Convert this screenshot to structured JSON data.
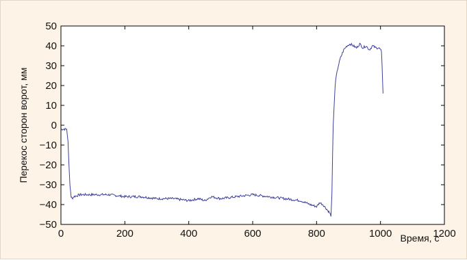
{
  "chart_data": {
    "type": "line",
    "xlabel": "Время, с",
    "ylabel": "Перекос сторон ворот, мм",
    "xlim": [
      0,
      1200
    ],
    "ylim": [
      -50,
      50
    ],
    "x_ticks": [
      "0",
      "200",
      "400",
      "600",
      "800",
      "1000",
      "1200"
    ],
    "y_ticks": [
      "50",
      "40",
      "30",
      "20",
      "10",
      "0",
      "−10",
      "−20",
      "−30",
      "−40",
      "−50"
    ],
    "grid": false,
    "series": [
      {
        "color": "#3b3f99",
        "x": [
          0,
          15,
          18,
          22,
          25,
          28,
          32,
          35,
          40,
          60,
          100,
          150,
          200,
          250,
          300,
          350,
          400,
          430,
          450,
          470,
          500,
          550,
          600,
          650,
          700,
          750,
          780,
          800,
          810,
          820,
          830,
          835,
          840,
          843,
          845,
          848,
          850,
          852,
          855,
          858,
          862,
          868,
          875,
          885,
          895,
          905,
          915,
          925,
          935,
          945,
          955,
          965,
          975,
          985,
          995,
          1000,
          1003,
          1005,
          1007,
          1008
        ],
        "y": [
          -2,
          -2,
          -2,
          -8,
          -20,
          -30,
          -36,
          -37,
          -36,
          -35,
          -35,
          -35,
          -36,
          -36,
          -37,
          -37,
          -38,
          -37,
          -38,
          -36,
          -37,
          -36,
          -35,
          -36,
          -37,
          -38,
          -40,
          -41,
          -39,
          -40,
          -42,
          -43,
          -44,
          -45,
          -46,
          -35,
          -15,
          0,
          10,
          20,
          25,
          30,
          34,
          38,
          40,
          41,
          40,
          39,
          41,
          39,
          40,
          38,
          40,
          39,
          39,
          38,
          37,
          30,
          20,
          16
        ]
      }
    ]
  }
}
